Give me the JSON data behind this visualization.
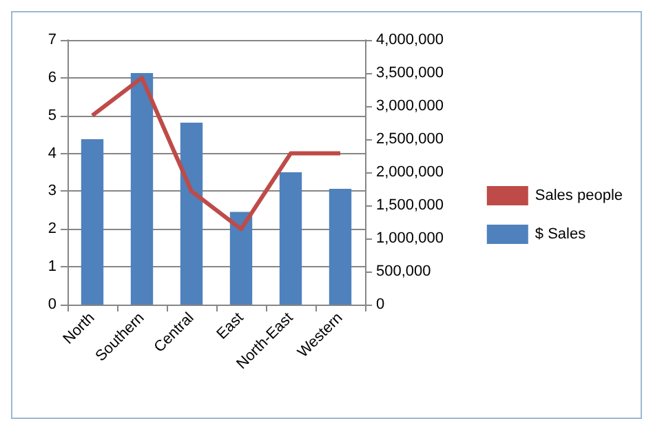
{
  "chart_data": {
    "type": "bar",
    "categories": [
      "North",
      "Southern",
      "Central",
      "East",
      "North-East",
      "Western"
    ],
    "series": [
      {
        "name": "Sales people",
        "type": "line",
        "color": "#be4b48",
        "values": [
          5,
          6,
          3,
          2,
          4,
          4
        ]
      },
      {
        "name": "$ Sales",
        "axis": "y2",
        "color": "#4f81bd",
        "values": [
          2500000,
          3500000,
          2750000,
          1400000,
          2000000,
          1750000
        ]
      }
    ],
    "ylim": [
      0,
      7
    ],
    "yticks": [
      0,
      1,
      2,
      3,
      4,
      5,
      6,
      7
    ],
    "y2lim": [
      0,
      4000000
    ],
    "y2ticks": [
      0,
      {
        "value": 500000,
        "label": "500,000"
      },
      {
        "value": 1000000,
        "label": "1,000,000"
      },
      {
        "value": 1500000,
        "label": "1,500,000"
      },
      {
        "value": 2000000,
        "label": "2,000,000"
      },
      {
        "value": 2500000,
        "label": "2,500,000"
      },
      {
        "value": 3000000,
        "label": "3,000,000"
      },
      {
        "value": 3500000,
        "label": "3,500,000"
      },
      {
        "value": 4000000,
        "label": "4,000,000"
      }
    ],
    "grid": "y",
    "legend": "right",
    "marker": "none"
  }
}
